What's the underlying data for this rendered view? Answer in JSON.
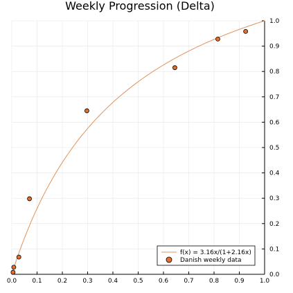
{
  "chart_data": {
    "type": "scatter",
    "title": "Weekly Progression (Delta)",
    "xlabel": "",
    "ylabel": "",
    "xlim": [
      0,
      1
    ],
    "ylim": [
      0,
      1
    ],
    "x_ticks": [
      "0.0",
      "0.1",
      "0.2",
      "0.3",
      "0.4",
      "0.5",
      "0.6",
      "0.7",
      "0.8",
      "0.9",
      "1.0"
    ],
    "y_ticks": [
      "0.0",
      "0.1",
      "0.2",
      "0.3",
      "0.4",
      "0.5",
      "0.6",
      "0.7",
      "0.8",
      "0.9",
      "1.0"
    ],
    "y_axis_position": "right",
    "grid": true,
    "legend_position": "bottom-right",
    "series": [
      {
        "name": "f(x) = 3.16x/(1+2.16x)",
        "kind": "line",
        "color": "#e0915a",
        "formula": {
          "a": 3.16,
          "b": 2.16
        }
      },
      {
        "name": "Danish weekly data",
        "kind": "scatter",
        "color": "#e26f2c",
        "edge_color": "#000000",
        "points": [
          [
            0.005,
            0.008
          ],
          [
            0.008,
            0.028
          ],
          [
            0.028,
            0.068
          ],
          [
            0.07,
            0.298
          ],
          [
            0.297,
            0.645
          ],
          [
            0.645,
            0.815
          ],
          [
            0.815,
            0.928
          ],
          [
            0.925,
            0.958
          ]
        ]
      }
    ]
  }
}
